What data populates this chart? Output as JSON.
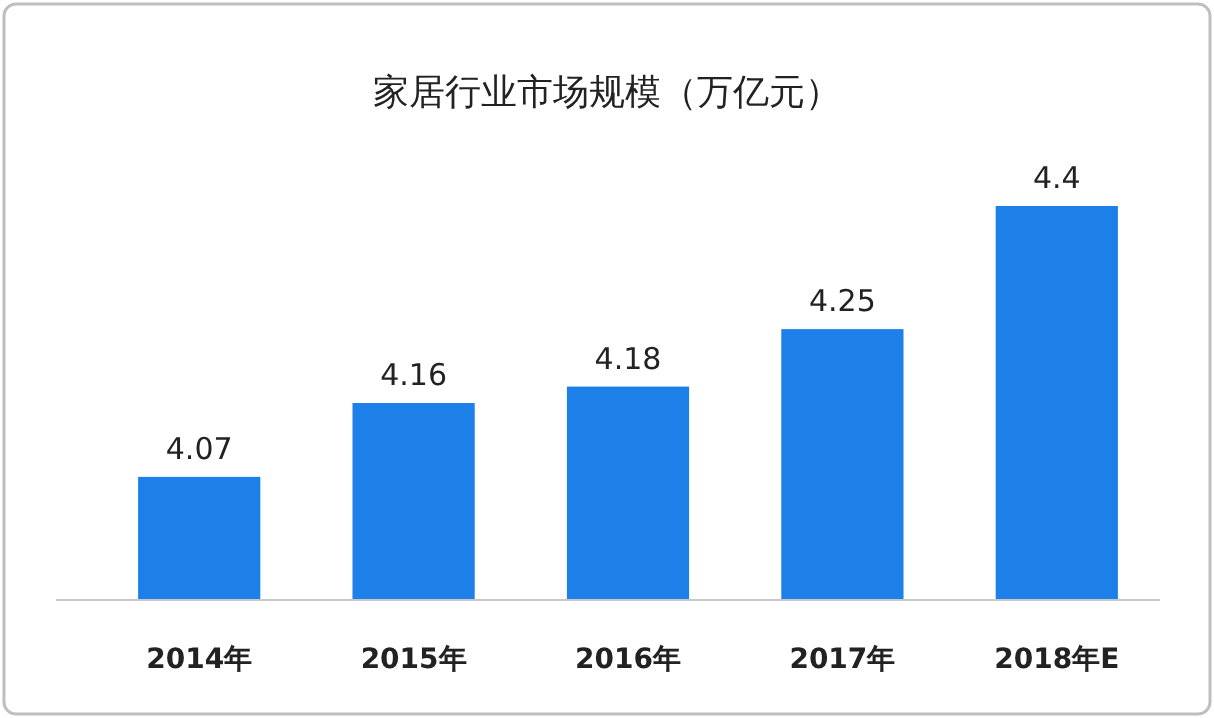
{
  "chart_data": {
    "type": "bar",
    "title": "家居行业市场规模（万亿元）",
    "categories": [
      "2014年",
      "2015年",
      "2016年",
      "2017年",
      "2018年E"
    ],
    "values": [
      4.07,
      4.16,
      4.18,
      4.25,
      4.4
    ],
    "color": "#1c80e8",
    "ylim": [
      3.92,
      4.4
    ],
    "data_labels": true
  }
}
